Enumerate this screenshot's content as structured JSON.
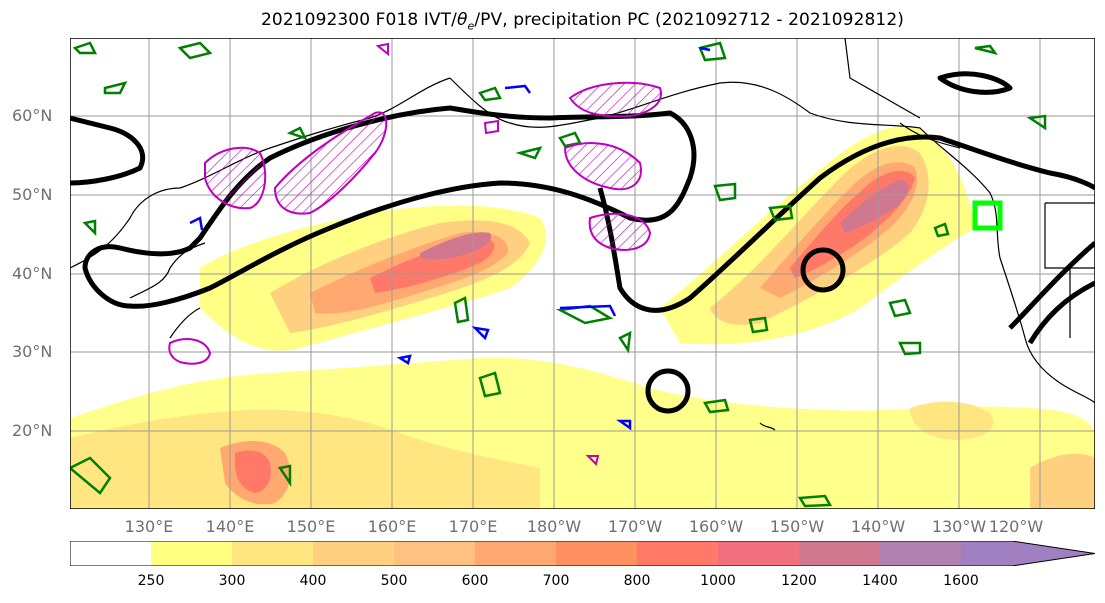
{
  "title": {
    "prefix": "2021092300 F018 IVT/",
    "theta": "θ",
    "theta_sub": "e",
    "suffix": "/PV, precipitation PC (2021092712 - 2021092812)"
  },
  "map": {
    "lat_labels": [
      "60°N",
      "50°N",
      "40°N",
      "30°N",
      "20°N"
    ],
    "lon_labels": [
      "130°E",
      "140°E",
      "150°E",
      "160°E",
      "170°E",
      "180°W",
      "170°W",
      "160°W",
      "150°W",
      "140°W",
      "130°W",
      "120°W"
    ],
    "colors": {
      "ivt_contour": "#000000",
      "theta_e_contour": "#008000",
      "pv_contour": "#c000c0",
      "blue_contour": "#0000ff",
      "target_box": "#00ff00"
    }
  },
  "colorbar": {
    "levels": [
      "250",
      "300",
      "400",
      "500",
      "600",
      "700",
      "800",
      "1000",
      "1200",
      "1400",
      "1600"
    ],
    "colors": [
      "#ffffff",
      "#ffff80",
      "#ffe680",
      "#ffd080",
      "#ffc080",
      "#ffa870",
      "#ff9060",
      "#ff7868",
      "#f07080",
      "#d07890",
      "#b080b0",
      "#a080c0"
    ]
  }
}
